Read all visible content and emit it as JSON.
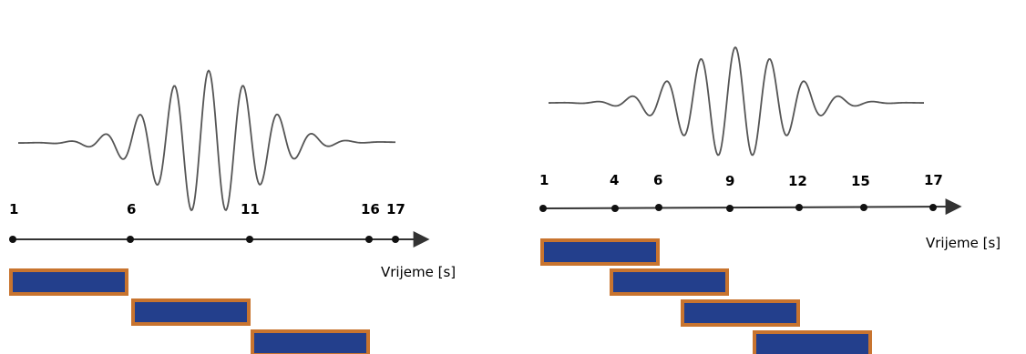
{
  "colors": {
    "wave": "#555555",
    "axis": "#333333",
    "window_fill": "#233f8c",
    "window_border": "#c8742f"
  },
  "left_panel": {
    "axis_label": "Vrijeme [s]",
    "ticks": [
      "1",
      "6",
      "11",
      "16",
      "17"
    ],
    "windows": [
      {
        "start": "1",
        "end": "6"
      },
      {
        "start": "6",
        "end": "11"
      },
      {
        "start": "11",
        "end": "16"
      }
    ]
  },
  "right_panel": {
    "axis_label": "Vrijeme [s]",
    "ticks": [
      "1",
      "4",
      "6",
      "9",
      "12",
      "15",
      "17"
    ],
    "windows": [
      {
        "start": "1",
        "end": "6"
      },
      {
        "start": "4",
        "end": "9"
      },
      {
        "start": "6",
        "end": "11"
      },
      {
        "start": "9",
        "end": "14"
      }
    ]
  }
}
